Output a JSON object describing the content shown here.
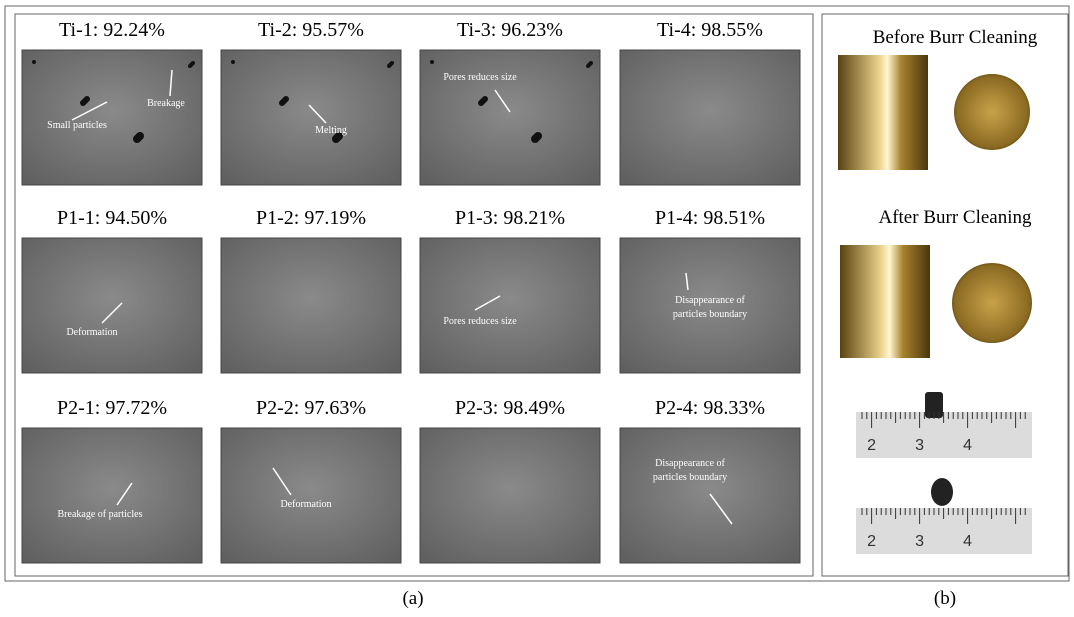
{
  "panel_a": {
    "caption": "(a)",
    "cells": [
      {
        "label": "Ti-1: 92.24%",
        "annotations": [
          [
            "Small particles"
          ],
          [
            "Breakage"
          ]
        ]
      },
      {
        "label": "Ti-2: 95.57%",
        "annotations": [
          [
            "Melting"
          ]
        ]
      },
      {
        "label": "Ti-3: 96.23%",
        "annotations": [
          [
            "Pores reduces size"
          ]
        ]
      },
      {
        "label": "Ti-4: 98.55%",
        "annotations": []
      },
      {
        "label": "P1-1: 94.50%",
        "annotations": [
          [
            "Deformation"
          ]
        ]
      },
      {
        "label": "P1-2: 97.19%",
        "annotations": []
      },
      {
        "label": "P1-3: 98.21%",
        "annotations": [
          [
            "Pores reduces size"
          ]
        ]
      },
      {
        "label": "P1-4: 98.51%",
        "annotations": [
          [
            "Disappearance of",
            "particles boundary"
          ]
        ]
      },
      {
        "label": "P2-1: 97.72%",
        "annotations": [
          [
            "Breakage of particles"
          ]
        ]
      },
      {
        "label": "P2-2: 97.63%",
        "annotations": [
          [
            "Deformation"
          ]
        ]
      },
      {
        "label": "P2-3: 98.49%",
        "annotations": []
      },
      {
        "label": "P2-4: 98.33%",
        "annotations": [
          [
            "Disappearance of",
            "particles boundary"
          ]
        ]
      }
    ]
  },
  "panel_b": {
    "caption": "(b)",
    "before": "Before Burr Cleaning",
    "after": "After Burr Cleaning",
    "ruler_1": [
      "2",
      "3",
      "4"
    ],
    "ruler_2": [
      "2",
      "3",
      "4"
    ]
  }
}
